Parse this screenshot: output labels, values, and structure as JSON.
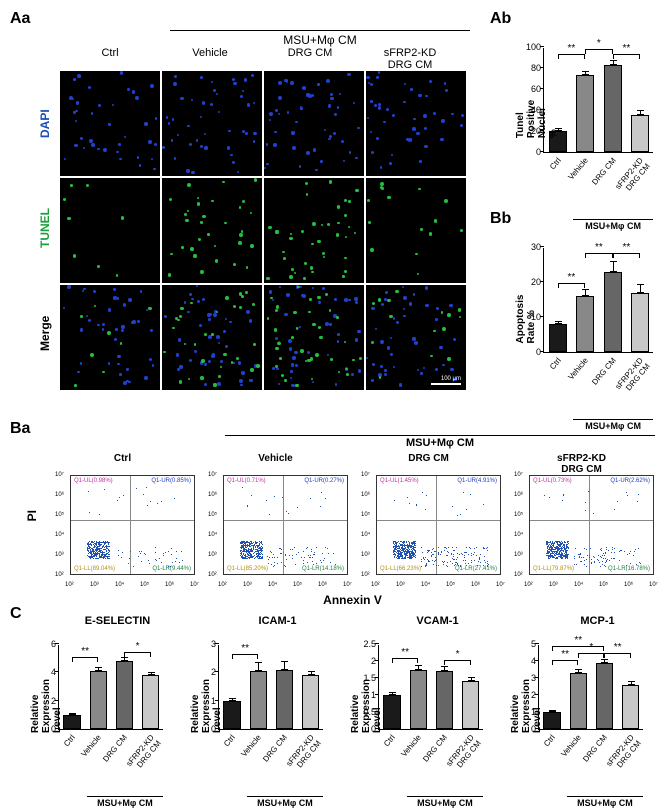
{
  "colors": {
    "bar_ctrl": "#1a1a1a",
    "bar_vehicle": "#888888",
    "bar_drg": "#666666",
    "bar_sfrp": "#c8c8c8",
    "dapi": "#2040d0",
    "tunel": "#20c040",
    "scatter_main": "#2050b0",
    "scatter_edge": "#d06020"
  },
  "panel_aa": {
    "label": "Aa",
    "top_header": "MSU+Mφ CM",
    "columns": [
      "Ctrl",
      "Vehicle",
      "DRG CM",
      "sFRP2-KD\nDRG CM"
    ],
    "rows": [
      "DAPI",
      "TUNEL",
      "Merge"
    ],
    "dot_density": {
      "dapi": [
        40,
        45,
        48,
        42
      ],
      "tunel": [
        8,
        32,
        38,
        15
      ],
      "merge": [
        40,
        45,
        48,
        42
      ]
    },
    "scale_bar": "100 μm"
  },
  "panel_ab": {
    "label": "Ab",
    "ylabel": "Tunel Positive Nuclei %",
    "ymax": 100,
    "ytick_step": 20,
    "bars": [
      {
        "label": "Ctrl",
        "value": 20,
        "err": 3,
        "color": "#1a1a1a"
      },
      {
        "label": "Vehicle",
        "value": 73,
        "err": 4,
        "color": "#888888"
      },
      {
        "label": "DRG CM",
        "value": 83,
        "err": 5,
        "color": "#666666"
      },
      {
        "label": "sFRP2-KD\nDRG CM",
        "value": 35,
        "err": 5,
        "color": "#c8c8c8"
      }
    ],
    "sig": [
      {
        "from": 0,
        "to": 1,
        "text": "**",
        "y": 92
      },
      {
        "from": 1,
        "to": 2,
        "text": "*",
        "y": 97
      },
      {
        "from": 2,
        "to": 3,
        "text": "**",
        "y": 92
      }
    ],
    "group_label": "MSU+Mφ CM"
  },
  "panel_bb": {
    "label": "Bb",
    "ylabel": "Apoptosis Rate %",
    "ymax": 30,
    "ytick_step": 10,
    "bars": [
      {
        "label": "Ctrl",
        "value": 8,
        "err": 1,
        "color": "#1a1a1a"
      },
      {
        "label": "Vehicle",
        "value": 16,
        "err": 2,
        "color": "#888888"
      },
      {
        "label": "DRG CM",
        "value": 23,
        "err": 3,
        "color": "#666666"
      },
      {
        "label": "sFRP2-KD\nDRG CM",
        "value": 17,
        "err": 2.5,
        "color": "#c8c8c8"
      }
    ],
    "sig": [
      {
        "from": 0,
        "to": 1,
        "text": "**",
        "y": 19.5
      },
      {
        "from": 1,
        "to": 2,
        "text": "**",
        "y": 28
      },
      {
        "from": 2,
        "to": 3,
        "text": "**",
        "y": 28
      }
    ],
    "group_label": "MSU+Mφ CM"
  },
  "panel_ba": {
    "label": "Ba",
    "top_header": "MSU+Mφ CM",
    "titles": [
      "Ctrl",
      "Vehicle",
      "DRG CM",
      "sFRP2-KD\nDRG CM"
    ],
    "ylabel": "PI",
    "xlabel": "Annexin V",
    "y_ticks": [
      "10²",
      "10³",
      "10⁴",
      "10⁵",
      "10⁶",
      "10⁷"
    ],
    "x_ticks": [
      "10²",
      "10³",
      "10⁴",
      "10⁵",
      "10⁶",
      "10⁷"
    ],
    "quad_h": 0.45,
    "quad_v": 0.48,
    "quadrants": [
      {
        "ul": "Q1-UL(0.98%)",
        "ur": "Q1-UR(0.85%)",
        "ll": "Q1-LL(89.04%)",
        "lr": "Q1-LR(9.44%)"
      },
      {
        "ul": "Q1-UL(0.71%)",
        "ur": "Q1-UR(0.27%)",
        "ll": "Q1-LL(85.20%)",
        "lr": "Q1-LR(14.18%)"
      },
      {
        "ul": "Q1-UL(1.45%)",
        "ur": "Q1-UR(4.91%)",
        "ll": "Q1-LL(66.23%)",
        "lr": "Q1-LR(27.41%)"
      },
      {
        "ul": "Q1-UL(0.73%)",
        "ur": "Q1-UR(2.62%)",
        "ll": "Q1-LL(79.87%)",
        "lr": "Q1-LR(16.78%)"
      }
    ]
  },
  "panel_c": {
    "label": "C",
    "ylabel": "Relative Expression Level",
    "charts": [
      {
        "title": "E-SELECTIN",
        "ymax": 6,
        "ytick_step": 2,
        "bars": [
          {
            "label": "Ctrl",
            "value": 1.0,
            "err": 0.1,
            "color": "#1a1a1a"
          },
          {
            "label": "Vehicle",
            "value": 4.1,
            "err": 0.3,
            "color": "#888888"
          },
          {
            "label": "DRG CM",
            "value": 4.8,
            "err": 0.3,
            "color": "#666666"
          },
          {
            "label": "sFRP2-KD\nDRG CM",
            "value": 3.8,
            "err": 0.25,
            "color": "#c8c8c8"
          }
        ],
        "sig": [
          {
            "from": 0,
            "to": 1,
            "text": "**",
            "y": 5.0
          },
          {
            "from": 2,
            "to": 3,
            "text": "*",
            "y": 5.4
          }
        ]
      },
      {
        "title": "ICAM-1",
        "ymax": 3,
        "ytick_step": 1,
        "bars": [
          {
            "label": "Ctrl",
            "value": 1.0,
            "err": 0.08,
            "color": "#1a1a1a"
          },
          {
            "label": "Vehicle",
            "value": 2.05,
            "err": 0.3,
            "color": "#888888"
          },
          {
            "label": "DRG CM",
            "value": 2.1,
            "err": 0.3,
            "color": "#666666"
          },
          {
            "label": "sFRP2-KD\nDRG CM",
            "value": 1.9,
            "err": 0.15,
            "color": "#c8c8c8"
          }
        ],
        "sig": [
          {
            "from": 0,
            "to": 1,
            "text": "**",
            "y": 2.6
          }
        ]
      },
      {
        "title": "VCAM-1",
        "ymax": 2.5,
        "ytick_step": 0.5,
        "bars": [
          {
            "label": "Ctrl",
            "value": 1.0,
            "err": 0.1,
            "color": "#1a1a1a"
          },
          {
            "label": "Vehicle",
            "value": 1.75,
            "err": 0.12,
            "color": "#888888"
          },
          {
            "label": "DRG CM",
            "value": 1.7,
            "err": 0.15,
            "color": "#666666"
          },
          {
            "label": "sFRP2-KD\nDRG CM",
            "value": 1.4,
            "err": 0.12,
            "color": "#c8c8c8"
          }
        ],
        "sig": [
          {
            "from": 0,
            "to": 1,
            "text": "**",
            "y": 2.05
          },
          {
            "from": 2,
            "to": 3,
            "text": "*",
            "y": 2.0
          }
        ]
      },
      {
        "title": "MCP-1",
        "ymax": 5,
        "ytick_step": 1,
        "bars": [
          {
            "label": "Ctrl",
            "value": 1.0,
            "err": 0.1,
            "color": "#1a1a1a"
          },
          {
            "label": "Vehicle",
            "value": 3.3,
            "err": 0.25,
            "color": "#888888"
          },
          {
            "label": "DRG CM",
            "value": 3.9,
            "err": 0.2,
            "color": "#666666"
          },
          {
            "label": "sFRP2-KD\nDRG CM",
            "value": 2.6,
            "err": 0.2,
            "color": "#c8c8c8"
          }
        ],
        "sig": [
          {
            "from": 0,
            "to": 1,
            "text": "**",
            "y": 4.0
          },
          {
            "from": 1,
            "to": 2,
            "text": "*",
            "y": 4.4
          },
          {
            "from": 2,
            "to": 3,
            "text": "**",
            "y": 4.4
          },
          {
            "from": 0,
            "to": 2,
            "text": "**",
            "y": 4.8
          }
        ]
      }
    ],
    "group_label": "MSU+Mφ CM"
  }
}
